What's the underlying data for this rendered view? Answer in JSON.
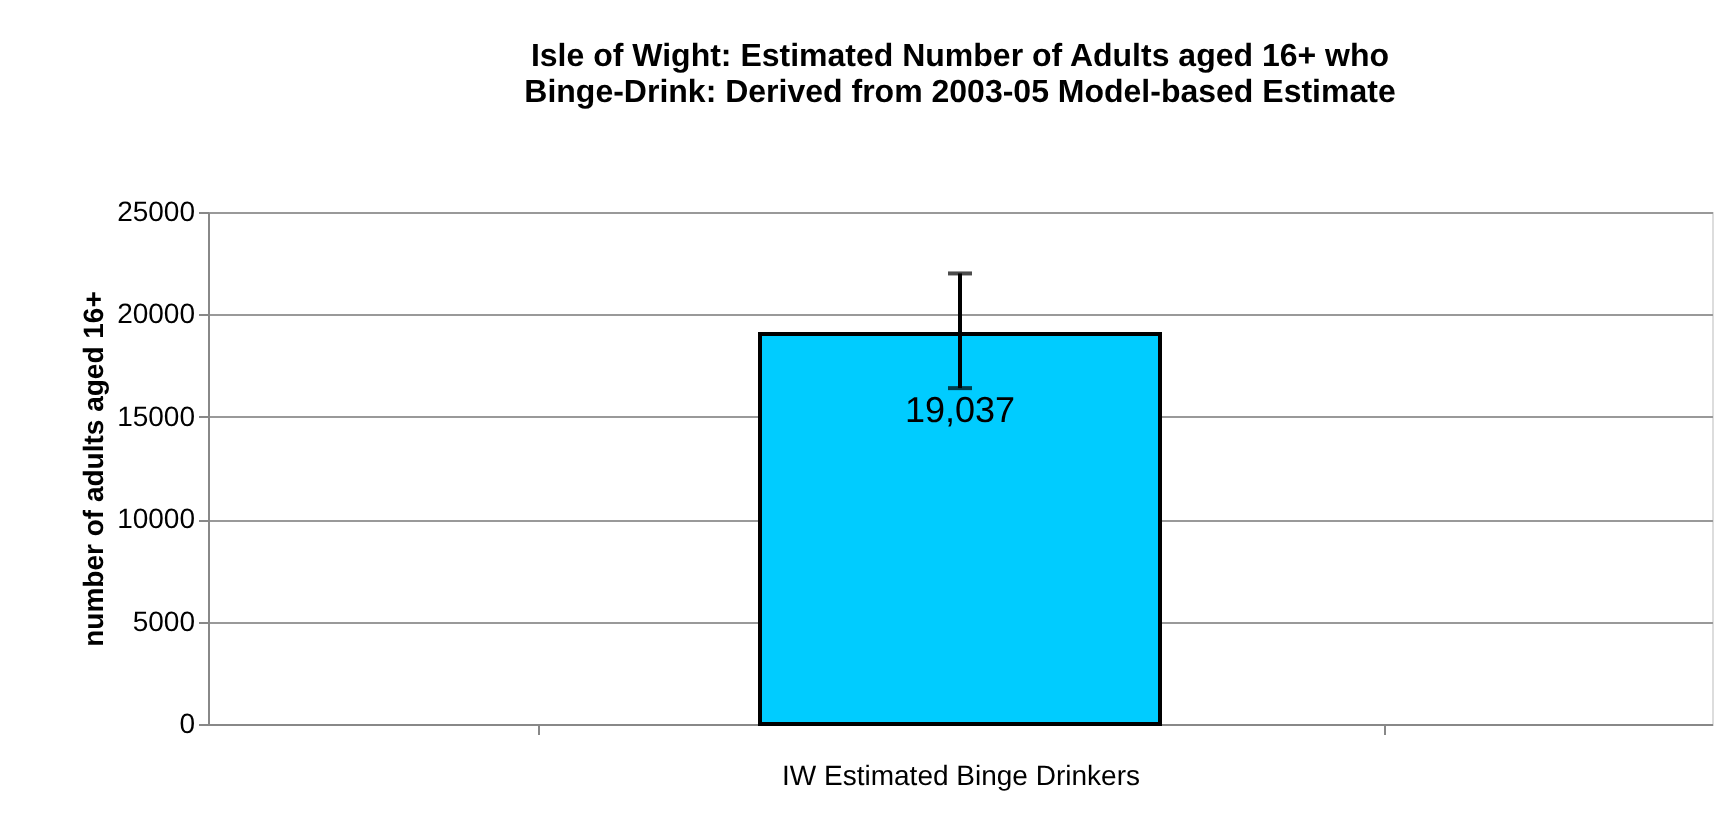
{
  "chart_data": {
    "type": "bar",
    "title": "Isle of Wight: Estimated Number of Adults aged 16+ who\nBinge-Drink: Derived from 2003-05 Model-based Estimate",
    "ylabel": "number of adults aged 16+",
    "categories": [
      "IW Estimated Binge Drinkers"
    ],
    "values": [
      19037
    ],
    "colors": [
      "#00ccff"
    ],
    "errors": [
      [
        16400,
        22000
      ]
    ],
    "value_labels": [
      "19,037"
    ],
    "ylim": [
      0,
      25000
    ],
    "yticks": [
      0,
      5000,
      10000,
      15000,
      20000,
      25000
    ],
    "grid": "y"
  }
}
